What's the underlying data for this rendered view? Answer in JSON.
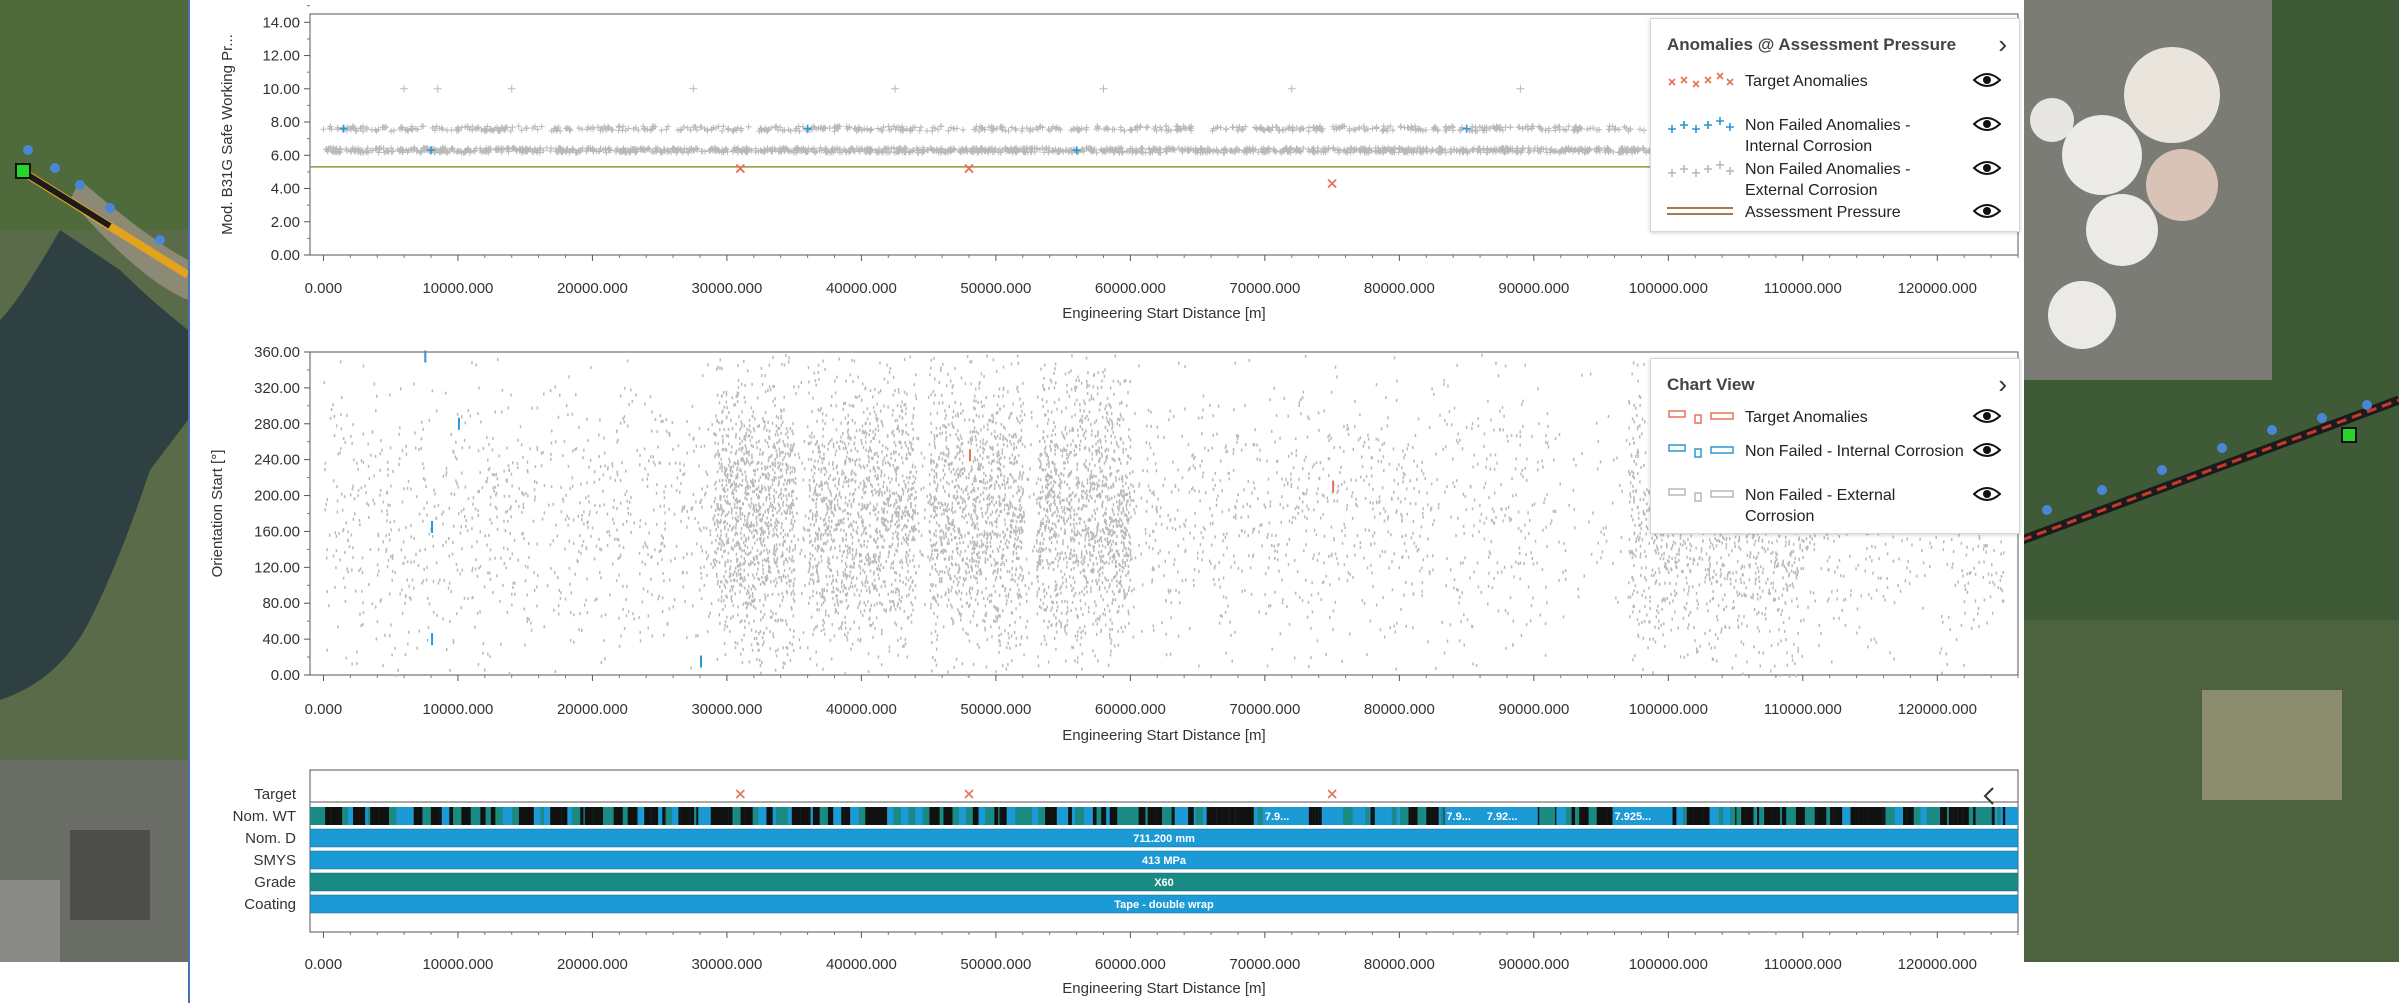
{
  "colors": {
    "target": "#e8715a",
    "internal": "#2e96d6",
    "external": "#b9b9b9",
    "pressure_line": "#8a9a3a",
    "accent_blue": "#1b9ad6",
    "grade_teal": "#1a8a84",
    "panel_border": "#4a72b4"
  },
  "legend_top": {
    "title": "Anomalies @ Assessment Pressure",
    "chevron_icon": "chevron-right-icon",
    "items": [
      {
        "label": "Target Anomalies",
        "icon": "red-cross-markers"
      },
      {
        "label": "Non Failed Anomalies - Internal Corrosion",
        "icon": "blue-plus-markers"
      },
      {
        "label": "Non Failed Anomalies - External Corrosion",
        "icon": "grey-plus-markers"
      },
      {
        "label": "Assessment Pressure",
        "icon": "brown-double-line"
      }
    ]
  },
  "legend_mid": {
    "title": "Chart View",
    "chevron_icon": "chevron-right-icon",
    "items": [
      {
        "label": "Target Anomalies",
        "icon": "red-rect-markers"
      },
      {
        "label": "Non Failed - Internal Corrosion",
        "icon": "blue-rect-markers"
      },
      {
        "label": "Non Failed - External Corrosion",
        "icon": "grey-rect-markers"
      }
    ]
  },
  "chart_data": [
    {
      "type": "scatter",
      "title": "",
      "xlabel": "Engineering Start Distance [m]",
      "ylabel": "Mod. B31G Safe Working Pr...",
      "xlim": [
        -1000,
        126000
      ],
      "ylim": [
        0,
        14.5
      ],
      "xticks": [
        "0.000",
        "10000.000",
        "20000.000",
        "30000.000",
        "40000.000",
        "50000.000",
        "60000.000",
        "70000.000",
        "80000.000",
        "90000.000",
        "100000.000",
        "110000.000",
        "120000.000"
      ],
      "yticks": [
        "0.00",
        "2.00",
        "4.00",
        "6.00",
        "8.00",
        "10.00",
        "12.00",
        "14.00"
      ],
      "assessment_pressure": 5.3,
      "series": [
        {
          "name": "Target Anomalies",
          "points": [
            [
              31000,
              5.2
            ],
            [
              48000,
              5.2
            ],
            [
              75000,
              4.3
            ]
          ]
        },
        {
          "name": "Non Failed Anomalies - Internal Corrosion",
          "points": [
            [
              1500,
              7.6
            ],
            [
              8000,
              6.3
            ],
            [
              36000,
              7.6
            ],
            [
              56000,
              6.3
            ],
            [
              85000,
              7.6
            ]
          ]
        },
        {
          "name": "Non Failed Anomalies - External Corrosion",
          "bands": [
            6.3,
            7.6
          ],
          "x_range": [
            0,
            126000
          ],
          "sparse_high": [
            [
              6000,
              10.0
            ],
            [
              8500,
              10.0
            ],
            [
              14000,
              10.0
            ],
            [
              27500,
              10.0
            ],
            [
              42500,
              10.0
            ],
            [
              58000,
              10.0
            ],
            [
              72000,
              10.0
            ],
            [
              89000,
              10.0
            ],
            [
              101000,
              10.0
            ]
          ]
        }
      ],
      "legend": "top-right",
      "grid": false
    },
    {
      "type": "scatter",
      "title": "",
      "xlabel": "Engineering Start Distance [m]",
      "ylabel": "Orientation Start [°]",
      "xlim": [
        -1000,
        126000
      ],
      "ylim": [
        0,
        360
      ],
      "xticks": [
        "0.000",
        "10000.000",
        "20000.000",
        "30000.000",
        "40000.000",
        "50000.000",
        "60000.000",
        "70000.000",
        "80000.000",
        "90000.000",
        "100000.000",
        "110000.000",
        "120000.000"
      ],
      "yticks": [
        "0.00",
        "40.00",
        "80.00",
        "120.00",
        "160.00",
        "200.00",
        "240.00",
        "280.00",
        "320.00",
        "360.00"
      ],
      "series": [
        {
          "name": "Target Anomalies",
          "points": [
            [
              48000,
              245
            ],
            [
              75000,
              210
            ]
          ]
        },
        {
          "name": "Non Failed - Internal Corrosion",
          "points": [
            [
              7500,
              355
            ],
            [
              8000,
              165
            ],
            [
              8000,
              40
            ],
            [
              10000,
              280
            ],
            [
              28000,
              15
            ]
          ]
        },
        {
          "name": "Non Failed - External Corrosion",
          "dense_regions": [
            [
              29000,
              35000
            ],
            [
              36000,
              44000
            ],
            [
              45000,
              52000
            ],
            [
              53000,
              60000
            ],
            [
              97000,
              110000
            ]
          ]
        }
      ],
      "legend": "top-right",
      "grid": false
    },
    {
      "type": "table",
      "xlabel": "Engineering Start Distance [m]",
      "xticks": [
        "0.000",
        "10000.000",
        "20000.000",
        "30000.000",
        "40000.000",
        "50000.000",
        "60000.000",
        "70000.000",
        "80000.000",
        "90000.000",
        "100000.000",
        "110000.000",
        "120000.000"
      ],
      "rows": [
        {
          "label": "Target",
          "markers_x": [
            31000,
            48000,
            75000
          ]
        },
        {
          "label": "Nom. WT",
          "segment_labels": [
            {
              "x": 70000,
              "text": "7.9..."
            },
            {
              "x": 83500,
              "text": "7.9..."
            },
            {
              "x": 86500,
              "text": "7.92..."
            },
            {
              "x": 96000,
              "text": "7.925..."
            }
          ]
        },
        {
          "label": "Nom. D",
          "value": "711.200 mm"
        },
        {
          "label": "SMYS",
          "value": "413 MPa"
        },
        {
          "label": "Grade",
          "value": "X60"
        },
        {
          "label": "Coating",
          "value": "Tape - double wrap"
        }
      ]
    }
  ]
}
